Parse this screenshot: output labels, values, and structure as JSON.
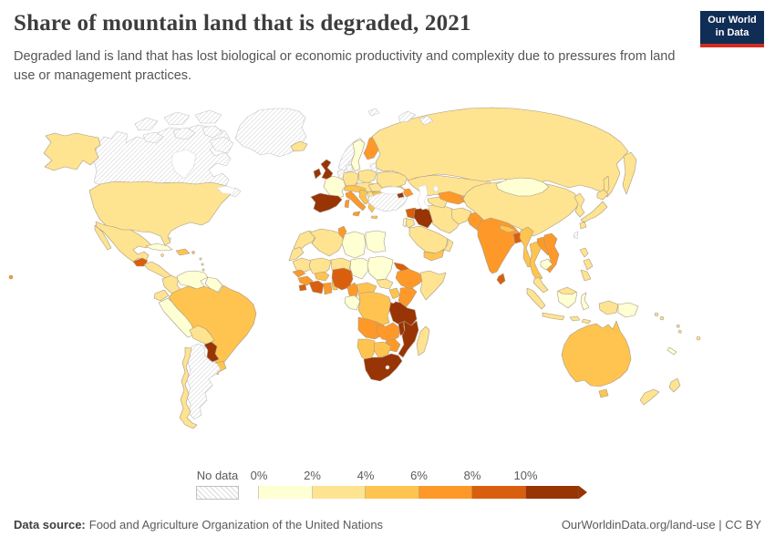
{
  "header": {
    "title": "Share of mountain land that is degraded, 2021",
    "subtitle": "Degraded land is land that has lost biological or economic productivity and complexity due to pressures from land use or management practices.",
    "logo": {
      "line1": "Our World",
      "line2": "in Data",
      "bg_color": "#102d55",
      "accent_color": "#d22d23"
    }
  },
  "legend": {
    "no_data_label": "No data",
    "bins": [
      {
        "label": "0%",
        "color": "#ffffd4"
      },
      {
        "label": "2%",
        "color": "#fee391"
      },
      {
        "label": "4%",
        "color": "#fec44f"
      },
      {
        "label": "6%",
        "color": "#fe9929"
      },
      {
        "label": "8%",
        "color": "#d95f0e"
      },
      {
        "label": "10%",
        "color": "#993404"
      }
    ]
  },
  "footer": {
    "source_label": "Data source:",
    "source_text": "Food and Agriculture Organization of the United Nations",
    "link_text": "OurWorldinData.org/land-use",
    "license_text": " | CC BY"
  },
  "chart_data": {
    "type": "choropleth",
    "title": "Share of mountain land that is degraded",
    "year": 2021,
    "unit": "share of mountain land degraded (%)",
    "legend_ticks": [
      "0%",
      "2%",
      "4%",
      "6%",
      "8%",
      "10%"
    ],
    "scale": {
      "0-2": "#ffffd4",
      "2-4": "#fee391",
      "4-6": "#fec44f",
      "6-8": "#fe9929",
      "8-10": "#d95f0e",
      "10+": "#993404"
    },
    "no_data_style": "white with diagonal gray hatching",
    "border_color": "#a89a85",
    "no_data_border": "#c4c4c4",
    "countries": {
      "alaska": "2-4",
      "canada": "no-data",
      "arctic-islands": "no-data",
      "greenland": "no-data",
      "usa": "2-4",
      "mexico": "2-4",
      "guatemala": "8-10",
      "central-america": "2-4",
      "cuba": "0-2",
      "jamaica": "2-4",
      "hispaniola": "4-6",
      "puerto-rico": "4-6",
      "bahamas": "0-2",
      "lesser-antilles": "2-4",
      "hawaii": "6-8",
      "colombia": "2-4",
      "venezuela": "0-2",
      "guianas": "0-2",
      "ecuador": "2-4",
      "peru": "0-2",
      "brazil": "4-6",
      "bolivia": "2-4",
      "paraguay": "10+",
      "uruguay": "4-6",
      "argentina": "no-data",
      "chile": "2-4",
      "iceland": "2-4",
      "ireland": "10+",
      "uk": "10+",
      "norway": "no-data",
      "sweden": "0-2",
      "finland": "6-8",
      "denmark": "no-data",
      "baltic-states": "no-data",
      "belarus": "no-data",
      "netherlands-belgium": "no-data",
      "germany": "2-4",
      "poland": "2-4",
      "czech-slovakia-hungary": "2-4",
      "switzerland-austria": "4-6",
      "france": "0-2",
      "iberia": "10+",
      "italy": "6-8",
      "sicily": "6-8",
      "sardinia": "6-8",
      "croatia-slovenia": "4-6",
      "serbia-bosnia": "2-4",
      "romania": "2-4",
      "bulgaria": "4-6",
      "greece": "4-6",
      "ukraine": "2-4",
      "russia": "2-4",
      "kamchatka": "2-4",
      "sakhalin": "2-4",
      "novaya-zemlya": "no-data",
      "svalbard": "no-data",
      "morocco": "2-4",
      "western-sahara": "2-4",
      "algeria": "2-4",
      "tunisia": "6-8",
      "libya": "0-2",
      "egypt": "0-2",
      "mauritania": "2-4",
      "mali": "2-4",
      "niger": "2-4",
      "chad": "0-2",
      "sudan": "0-2",
      "south-sudan": "2-4",
      "senegal": "6-8",
      "guinea": "6-8",
      "sierra-leone": "8-10",
      "cote-divoire": "8-10",
      "ghana": "6-8",
      "burkina-faso": "4-6",
      "togo-benin": "4-6",
      "nigeria": "8-10",
      "cameroon": "6-8",
      "car": "4-6",
      "gabon-congo": "0-2",
      "drc": "4-6",
      "uganda": "4-6",
      "kenya": "6-8",
      "eritrea": "8-10",
      "ethiopia": "6-8",
      "somalia": "2-4",
      "tanzania": "10+",
      "angola": "6-8",
      "zambia": "6-8",
      "malawi": "10+",
      "mozambique": "10+",
      "zimbabwe": "6-8",
      "namibia": "4-6",
      "botswana": "4-6",
      "south-africa": "10+",
      "lesotho": "no-data",
      "madagascar": "2-4",
      "turkey": "no-data",
      "syria": "8-10",
      "israel": "0-2",
      "jordan": "2-4",
      "iraq": "10+",
      "saudi-arabia": "2-4",
      "yemen": "4-6",
      "oman": "2-4",
      "iran": "2-4",
      "georgia": "4-6",
      "armenia": "10+",
      "azerbaijan": "6-8",
      "kazakhstan": "2-4",
      "turkmenistan": "2-4",
      "uzbekistan": "6-8",
      "kyrgyzstan-tajikistan": "6-8",
      "afghanistan": "2-4",
      "pakistan": "6-8",
      "india": "6-8",
      "nepal": "4-6",
      "bangladesh": "8-10",
      "sri-lanka": "8-10",
      "myanmar": "4-6",
      "thailand": "4-6",
      "laos": "6-8",
      "vietnam": "6-8",
      "cambodia": "0-2",
      "malay-peninsula": "2-4",
      "china": "2-4",
      "mongolia": "0-2",
      "korea": "2-4",
      "japan": "2-4",
      "taiwan": "no-data",
      "philippines": "2-4",
      "sumatra": "2-4",
      "java": "2-4",
      "kalimantan": "0-2",
      "malaysia-borneo": "2-4",
      "sulawesi": "0-2",
      "west-papua": "2-4",
      "png": "0-2",
      "timor": "2-4",
      "lesser-sunda": "2-4",
      "australia": "4-6",
      "tasmania": "4-6",
      "nz-north": "2-4",
      "nz-south": "2-4",
      "new-caledonia": "0-2",
      "fiji": "2-4",
      "solomon": "2-4",
      "vanuatu": "2-4"
    }
  }
}
